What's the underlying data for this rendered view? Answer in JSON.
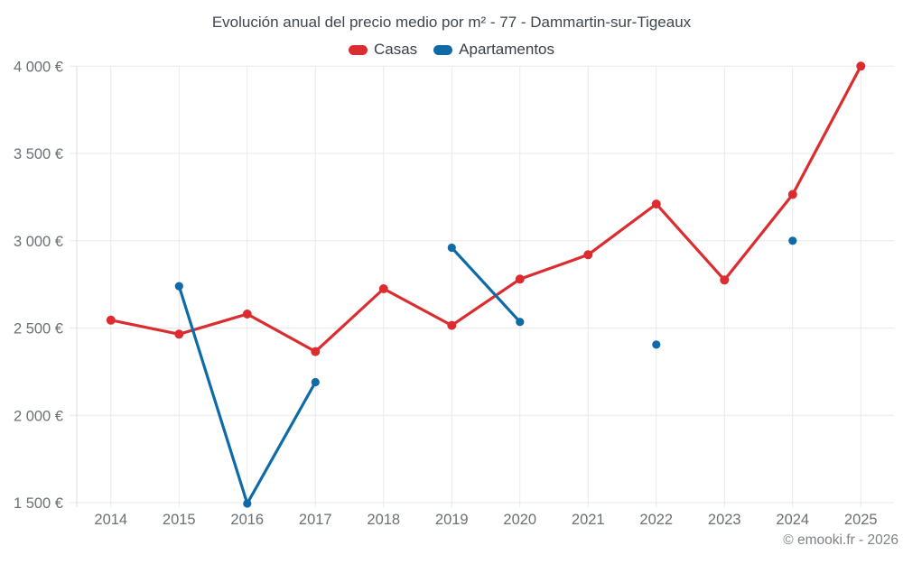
{
  "header": {
    "title": "Evolución anual del precio medio por m² - 77 - Dammartin-sur-Tigeaux"
  },
  "footer": {
    "credit": "© emooki.fr - 2026"
  },
  "chart_data": {
    "type": "line",
    "title": "Evolución anual del precio medio por m² - 77 - Dammartin-sur-Tigeaux",
    "categories": [
      "2014",
      "2015",
      "2016",
      "2017",
      "2018",
      "2019",
      "2020",
      "2021",
      "2022",
      "2023",
      "2024",
      "2025"
    ],
    "series": [
      {
        "name": "Casas",
        "color": "#dc2c30",
        "marker_radius": 5,
        "values": [
          2545,
          2465,
          2580,
          2365,
          2725,
          2515,
          2780,
          2920,
          3210,
          2775,
          3265,
          4000
        ]
      },
      {
        "name": "Apartamentos",
        "color": "#0f6ba8",
        "marker_radius": 4.6,
        "values": [
          null,
          2740,
          1495,
          2190,
          null,
          2960,
          2535,
          null,
          2405,
          null,
          3000,
          null
        ]
      }
    ],
    "ylabel": "",
    "xlabel": "",
    "ylim": [
      1500,
      4000
    ],
    "ytick_step": 500,
    "yticklabels": [
      "1 500 €",
      "2 000 €",
      "2 500 €",
      "3 000 €",
      "3 500 €",
      "4 000 €"
    ],
    "currency_suffix": " €",
    "grid": true,
    "grid_color": "#e9e9e9",
    "tick_color": "#dedede",
    "legend_position": "top"
  }
}
